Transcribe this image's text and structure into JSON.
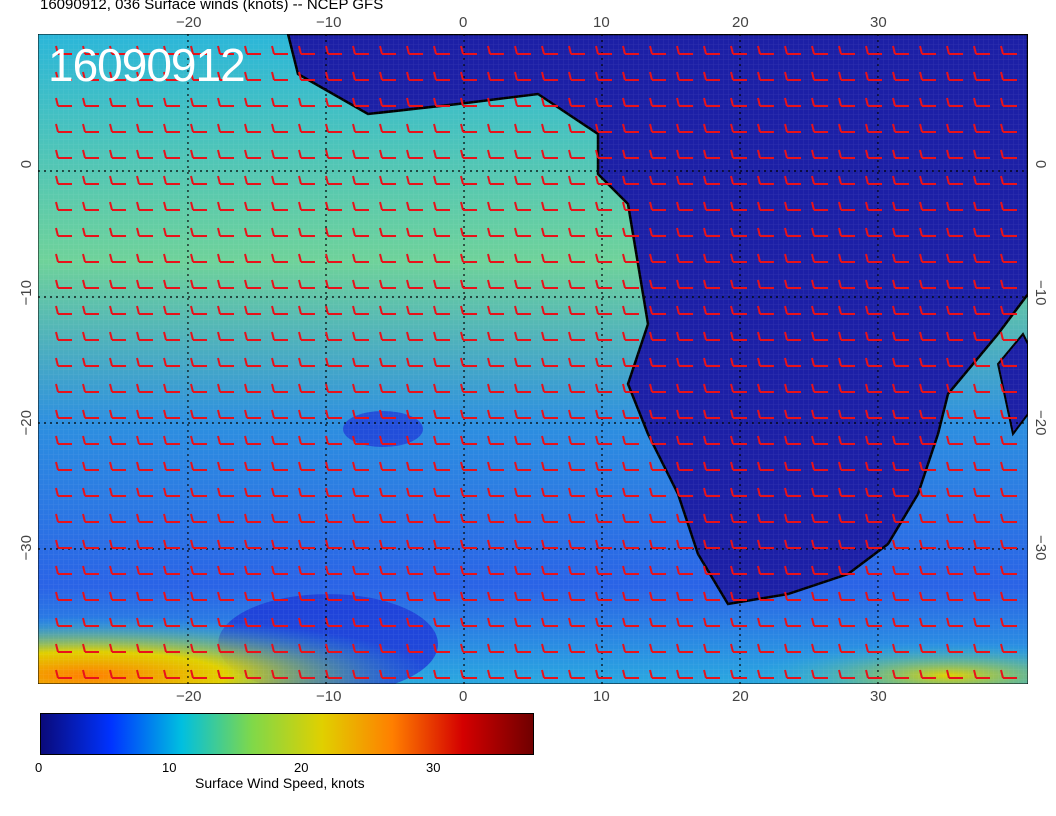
{
  "title": "16090912, 036 Surface winds (knots) -- NCEP GFS",
  "stamp": "16090912",
  "map": {
    "lon_ticks": [
      "−20",
      "−10",
      "0",
      "10",
      "20",
      "30"
    ],
    "lat_ticks": [
      "0",
      "−10",
      "−20",
      "−30"
    ],
    "colors": {
      "ocean_low": "#1a3fd6",
      "ocean_mid": "#22b8e0",
      "ocean_high": "#8fd04a",
      "land": "#1a1e9e",
      "barb": "#e8121a",
      "coast": "#000000",
      "grid": "#000000"
    }
  },
  "colorbar": {
    "ticks": [
      "0",
      "10",
      "20",
      "30"
    ],
    "label": "Surface Wind Speed, knots",
    "stops": [
      "#0a0a7a",
      "#0033ff",
      "#00bfe0",
      "#7fd84a",
      "#e0d000",
      "#ff7f00",
      "#d40000",
      "#700000"
    ]
  }
}
